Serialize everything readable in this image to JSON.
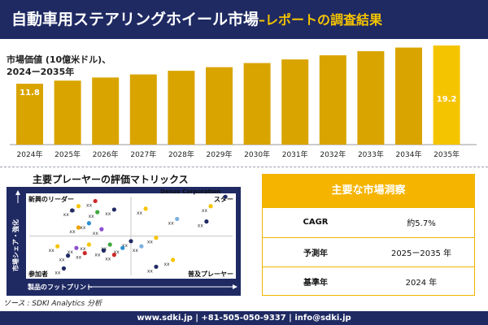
{
  "header": {
    "title": "自動車用ステアリングホイール市場",
    "subtitle": "–レポートの調査結果"
  },
  "chart_data": {
    "type": "bar",
    "title_line1": "市場価値 (10億米ドル)、",
    "title_line2": "2024ー2035年",
    "categories": [
      "2024年",
      "2025年",
      "2026年",
      "2027年",
      "2028年",
      "2029年",
      "2030年",
      "2031年",
      "2032年",
      "2033年",
      "2034年",
      "2035年"
    ],
    "values": [
      11.8,
      12.4,
      13.0,
      13.6,
      14.3,
      15.0,
      15.8,
      16.5,
      17.3,
      18.1,
      18.8,
      19.2
    ],
    "data_labels": {
      "first": "11.8",
      "last": "19.2"
    },
    "bar_color": "#d9a400",
    "last_bar_color": "#f5c400"
  },
  "matrix": {
    "title": "主要プレーヤーの評価マトリックス",
    "q_top_left": "新興のリーダー",
    "q_top_right": "スター",
    "q_bottom_left": "参加者",
    "q_bottom_right": "普及プレーヤー",
    "y_axis": "市場シェア・強化",
    "x_axis": "製品のフットプリント",
    "highlight_label": "Denso Corporation",
    "point_label": "xx",
    "points": [
      {
        "x": 0.95,
        "y": 0.96,
        "color": "#1f2a63",
        "label": "Denso Corporation"
      },
      {
        "x": 0.88,
        "y": 0.85,
        "color": "#f5c400"
      },
      {
        "x": 0.86,
        "y": 0.67,
        "color": "#1f2a63"
      },
      {
        "x": 0.72,
        "y": 0.7,
        "color": "#7fb0e0"
      },
      {
        "x": 0.57,
        "y": 0.82,
        "color": "#f5c400"
      },
      {
        "x": 0.42,
        "y": 0.81,
        "color": "#1f2a63"
      },
      {
        "x": 0.33,
        "y": 0.91,
        "color": "#cc2a2a"
      },
      {
        "x": 0.34,
        "y": 0.78,
        "color": "#3fa83f"
      },
      {
        "x": 0.25,
        "y": 0.85,
        "color": "#f5c400"
      },
      {
        "x": 0.3,
        "y": 0.65,
        "color": "#2a8fcf"
      },
      {
        "x": 0.25,
        "y": 0.6,
        "color": "#f0a000"
      },
      {
        "x": 0.22,
        "y": 0.8,
        "color": "#1f2a63"
      },
      {
        "x": 0.36,
        "y": 0.58,
        "color": "#8a4fd0"
      },
      {
        "x": 0.62,
        "y": 0.48,
        "color": "#f5c400"
      },
      {
        "x": 0.55,
        "y": 0.38,
        "color": "#7fb0e0"
      },
      {
        "x": 0.5,
        "y": 0.44,
        "color": "#1f2a63"
      },
      {
        "x": 0.46,
        "y": 0.36,
        "color": "#2a8fcf"
      },
      {
        "x": 0.42,
        "y": 0.28,
        "color": "#cc2a2a"
      },
      {
        "x": 0.4,
        "y": 0.4,
        "color": "#3fa83f"
      },
      {
        "x": 0.37,
        "y": 0.33,
        "color": "#1f2a63"
      },
      {
        "x": 0.3,
        "y": 0.4,
        "color": "#f5c400"
      },
      {
        "x": 0.28,
        "y": 0.3,
        "color": "#cc2a2a"
      },
      {
        "x": 0.24,
        "y": 0.36,
        "color": "#8a4fd0"
      },
      {
        "x": 0.2,
        "y": 0.27,
        "color": "#1f2a63"
      },
      {
        "x": 0.15,
        "y": 0.38,
        "color": "#f5c400"
      },
      {
        "x": 0.7,
        "y": 0.22,
        "color": "#f5c400"
      },
      {
        "x": 0.62,
        "y": 0.14,
        "color": "#1f2a63"
      },
      {
        "x": 0.18,
        "y": 0.12,
        "color": "#1f2a63"
      }
    ]
  },
  "panel": {
    "title": "主要な市場洞察",
    "rows": [
      {
        "label": "CAGR",
        "value": "約5.7%"
      },
      {
        "label": "予測年",
        "value": "2025ー2035 年"
      },
      {
        "label": "基準年",
        "value": "2024 年"
      }
    ]
  },
  "source": "ソース : SDKI Analytics 分析",
  "footer": "www.sdki.jp | +81-505-050-9337 | info@sdki.jp"
}
